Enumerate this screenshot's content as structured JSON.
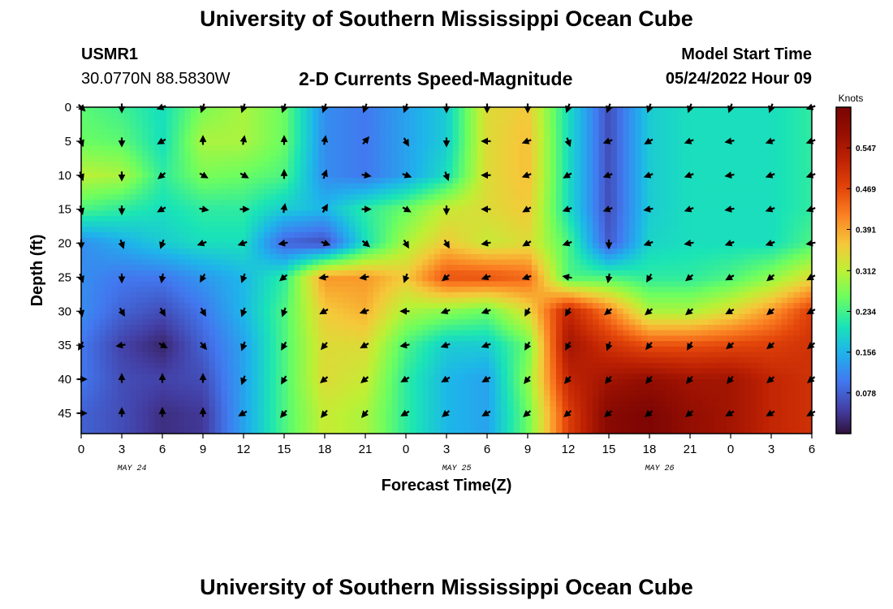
{
  "header": {
    "title": "University of Southern Mississippi Ocean Cube",
    "station": "USMR1",
    "coords": "30.0770N  88.5830W",
    "subtitle": "2-D Currents Speed-Magnitude",
    "model_start_label": "Model Start Time",
    "model_start_value": "05/24/2022 Hour 09"
  },
  "footer": {
    "title": "University of Southern Mississippi Ocean Cube"
  },
  "chart_data": {
    "type": "heatmap",
    "title": "2-D Currents Speed-Magnitude",
    "xlabel": "Forecast Time(Z)",
    "ylabel": "Depth (ft)",
    "x_hours": [
      0,
      3,
      6,
      9,
      12,
      15,
      18,
      21,
      24,
      27,
      30,
      33,
      36,
      39,
      42,
      45,
      48,
      51,
      54
    ],
    "x_tick_labels": [
      "0",
      "3",
      "6",
      "9",
      "12",
      "15",
      "18",
      "21",
      "0",
      "3",
      "6",
      "9",
      "12",
      "15",
      "18",
      "21",
      "0",
      "3",
      "6"
    ],
    "date_labels": [
      {
        "text": "MAY 24",
        "x_hour": 3.75
      },
      {
        "text": "MAY 25",
        "x_hour": 27.75
      },
      {
        "text": "MAY 26",
        "x_hour": 42.75
      }
    ],
    "y_depth_ft": [
      0,
      5,
      10,
      15,
      20,
      25,
      30,
      35,
      40,
      45
    ],
    "y_tick_labels": [
      "0",
      "5",
      "10",
      "15",
      "20",
      "25",
      "30",
      "35",
      "40",
      "45"
    ],
    "ylim": [
      0,
      48
    ],
    "speed_knots": [
      [
        0.25,
        0.23,
        0.2,
        0.27,
        0.3,
        0.26,
        0.12,
        0.1,
        0.14,
        0.18,
        0.34,
        0.36,
        0.2,
        0.06,
        0.18,
        0.2,
        0.2,
        0.2,
        0.22
      ],
      [
        0.26,
        0.25,
        0.2,
        0.3,
        0.3,
        0.26,
        0.12,
        0.1,
        0.14,
        0.18,
        0.34,
        0.37,
        0.2,
        0.06,
        0.18,
        0.2,
        0.2,
        0.2,
        0.22
      ],
      [
        0.31,
        0.3,
        0.22,
        0.27,
        0.26,
        0.24,
        0.12,
        0.1,
        0.14,
        0.2,
        0.34,
        0.37,
        0.2,
        0.06,
        0.18,
        0.2,
        0.2,
        0.2,
        0.22
      ],
      [
        0.24,
        0.22,
        0.2,
        0.22,
        0.22,
        0.18,
        0.16,
        0.22,
        0.26,
        0.32,
        0.34,
        0.36,
        0.2,
        0.06,
        0.18,
        0.2,
        0.2,
        0.2,
        0.22
      ],
      [
        0.12,
        0.15,
        0.18,
        0.2,
        0.2,
        0.08,
        0.06,
        0.2,
        0.3,
        0.36,
        0.32,
        0.34,
        0.24,
        0.07,
        0.19,
        0.2,
        0.2,
        0.2,
        0.24
      ],
      [
        0.12,
        0.1,
        0.1,
        0.13,
        0.16,
        0.22,
        0.4,
        0.4,
        0.36,
        0.46,
        0.46,
        0.44,
        0.24,
        0.24,
        0.22,
        0.22,
        0.24,
        0.28,
        0.34
      ],
      [
        0.12,
        0.08,
        0.06,
        0.1,
        0.16,
        0.24,
        0.36,
        0.38,
        0.3,
        0.28,
        0.26,
        0.34,
        0.52,
        0.42,
        0.3,
        0.3,
        0.34,
        0.4,
        0.48
      ],
      [
        0.1,
        0.05,
        0.02,
        0.08,
        0.14,
        0.24,
        0.34,
        0.34,
        0.24,
        0.18,
        0.18,
        0.26,
        0.56,
        0.5,
        0.46,
        0.46,
        0.47,
        0.48,
        0.5
      ],
      [
        0.1,
        0.06,
        0.05,
        0.06,
        0.14,
        0.24,
        0.34,
        0.32,
        0.22,
        0.16,
        0.14,
        0.28,
        0.52,
        0.56,
        0.58,
        0.56,
        0.56,
        0.52,
        0.5
      ],
      [
        0.08,
        0.06,
        0.03,
        0.04,
        0.14,
        0.24,
        0.32,
        0.3,
        0.22,
        0.16,
        0.14,
        0.26,
        0.48,
        0.6,
        0.62,
        0.58,
        0.56,
        0.52,
        0.5
      ]
    ],
    "direction_deg": [
      [
        135,
        180,
        250,
        200,
        200,
        200,
        200,
        200,
        200,
        180,
        180,
        180,
        200,
        200,
        200,
        200,
        200,
        200,
        250
      ],
      [
        160,
        180,
        240,
        0,
        10,
        0,
        10,
        40,
        150,
        180,
        270,
        250,
        160,
        250,
        240,
        250,
        260,
        250,
        250
      ],
      [
        160,
        180,
        230,
        120,
        120,
        0,
        20,
        100,
        110,
        160,
        270,
        250,
        240,
        250,
        250,
        250,
        260,
        250,
        250
      ],
      [
        165,
        180,
        240,
        100,
        90,
        10,
        30,
        90,
        120,
        180,
        270,
        240,
        250,
        250,
        260,
        250,
        260,
        250,
        250
      ],
      [
        180,
        160,
        200,
        250,
        250,
        260,
        110,
        130,
        150,
        150,
        260,
        240,
        250,
        180,
        250,
        260,
        250,
        250,
        260
      ],
      [
        160,
        180,
        190,
        210,
        200,
        230,
        260,
        260,
        200,
        230,
        250,
        250,
        280,
        190,
        210,
        230,
        240,
        230,
        240
      ],
      [
        170,
        150,
        150,
        150,
        200,
        200,
        240,
        250,
        270,
        250,
        250,
        210,
        210,
        230,
        230,
        230,
        240,
        230,
        240
      ],
      [
        210,
        260,
        120,
        140,
        200,
        210,
        220,
        240,
        260,
        250,
        250,
        210,
        210,
        200,
        220,
        210,
        230,
        230,
        230
      ],
      [
        90,
        0,
        0,
        0,
        200,
        210,
        230,
        230,
        240,
        240,
        240,
        220,
        220,
        220,
        220,
        220,
        220,
        230,
        230
      ],
      [
        90,
        0,
        0,
        0,
        240,
        220,
        220,
        220,
        240,
        230,
        240,
        230,
        230,
        230,
        230,
        230,
        240,
        240,
        240
      ]
    ],
    "colorbar": {
      "label": "Knots",
      "ticks": [
        "0.078",
        "0.156",
        "0.234",
        "0.312",
        "0.391",
        "0.469",
        "0.547"
      ],
      "tick_values": [
        0.078,
        0.156,
        0.234,
        0.312,
        0.391,
        0.469,
        0.547
      ],
      "range": [
        0,
        0.625
      ]
    },
    "grid": false
  }
}
